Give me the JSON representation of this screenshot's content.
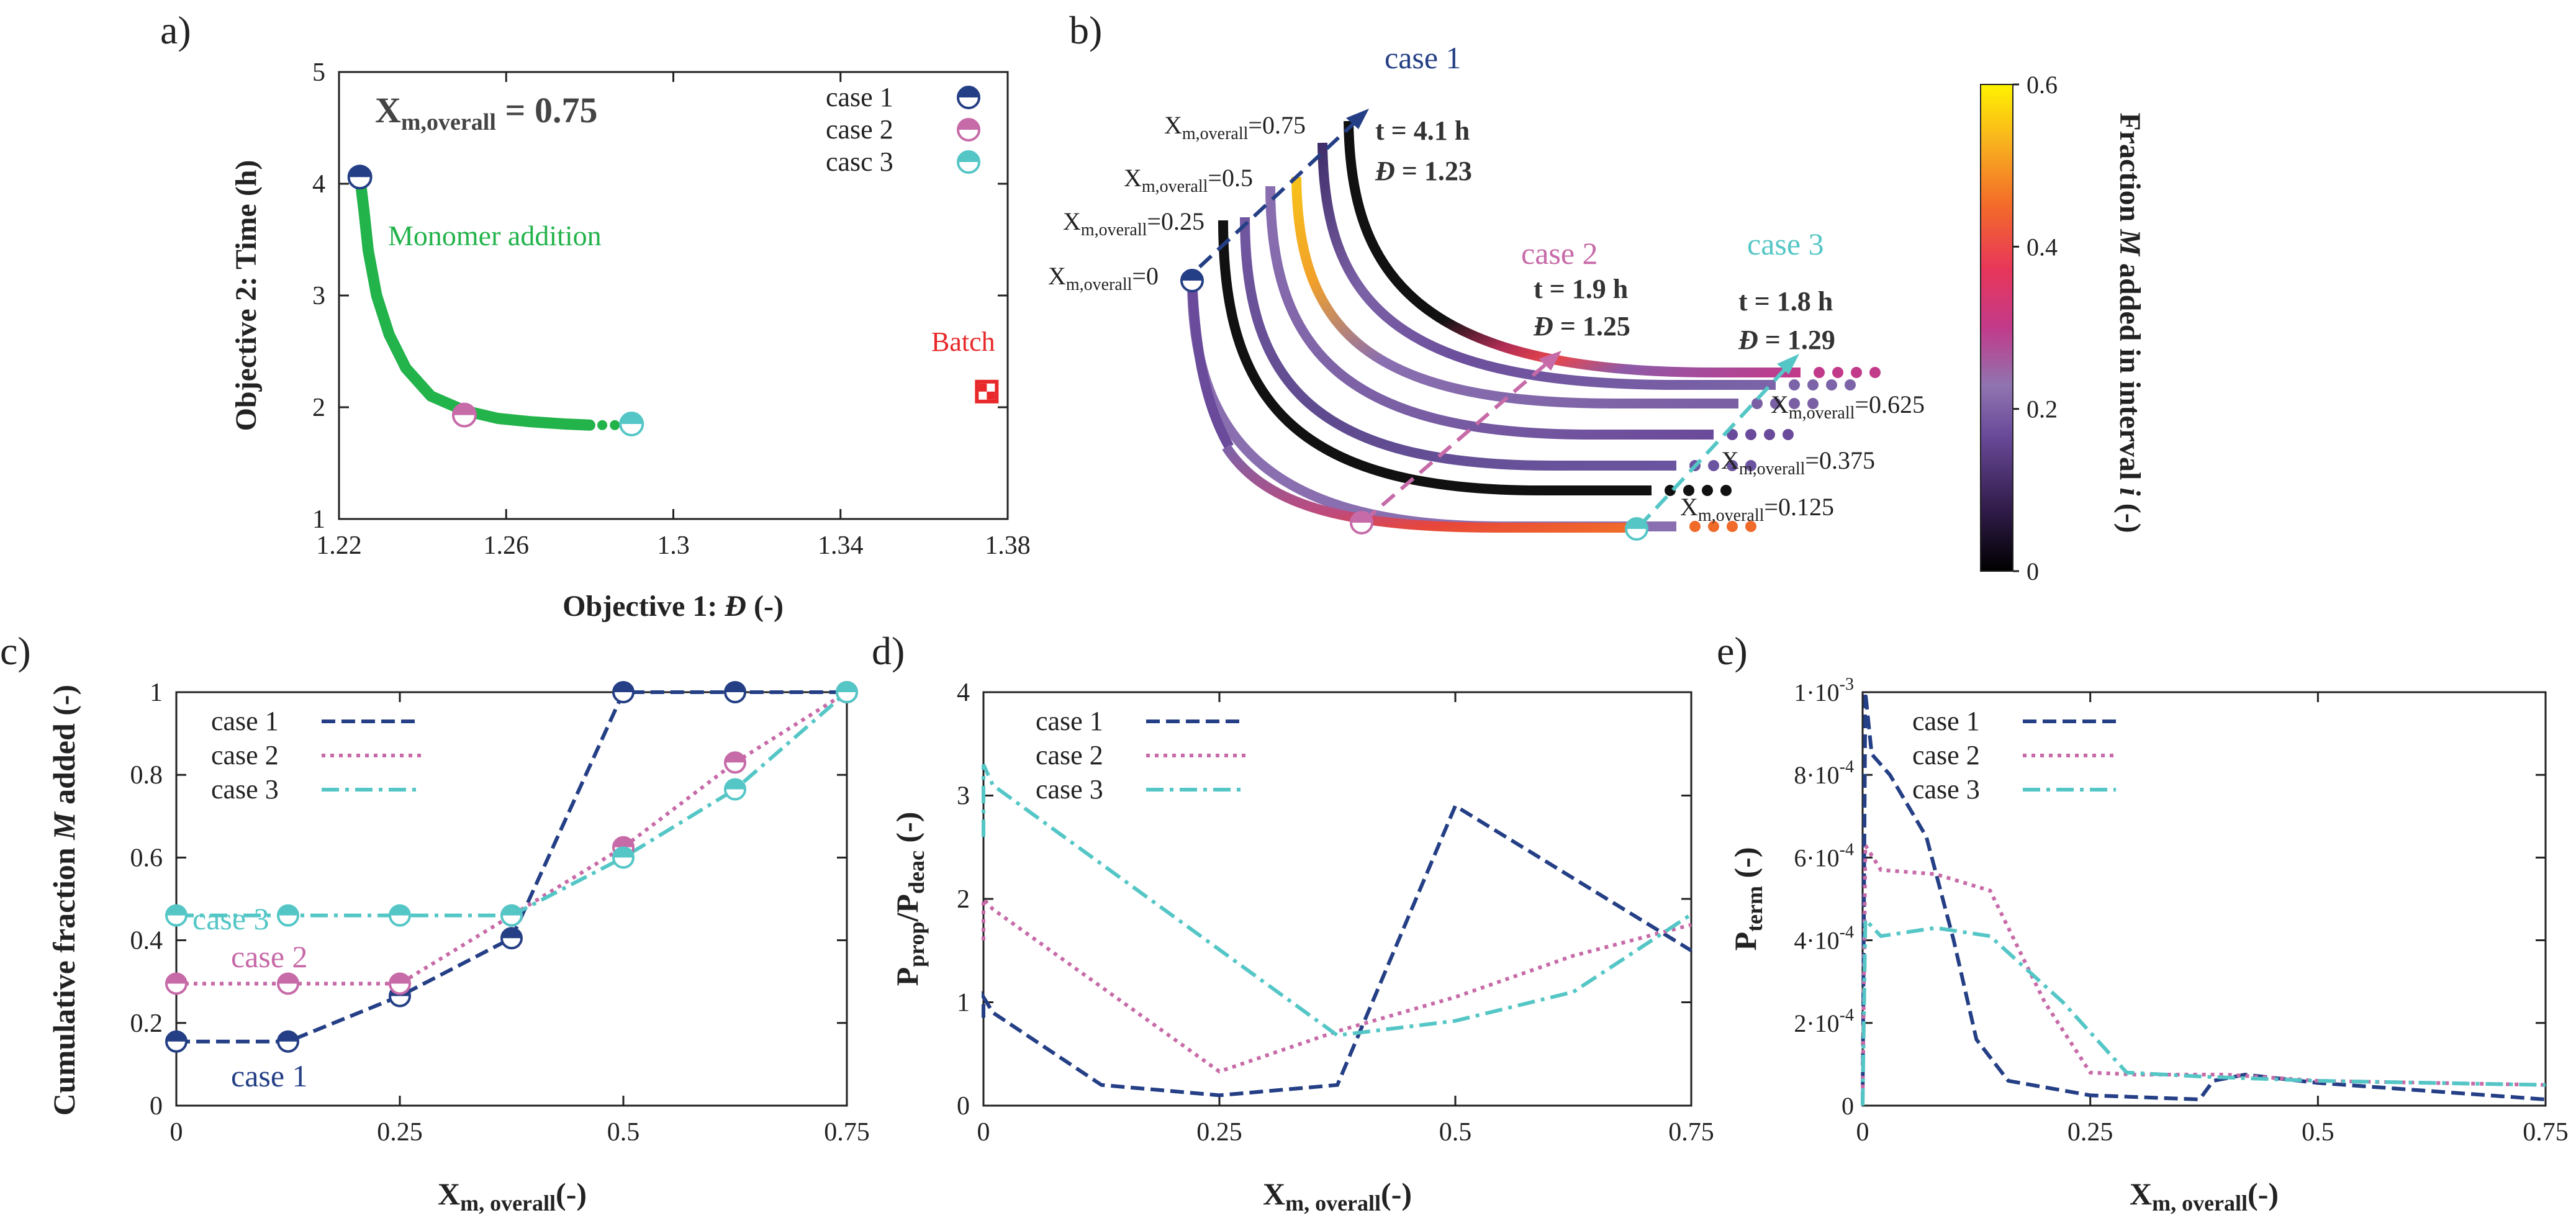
{
  "colors": {
    "case1": "#243f85",
    "case2": "#c76aa8",
    "case3": "#55c6c6",
    "green": "#22b34a",
    "batch": "#e8282a",
    "dark": "#333333"
  },
  "chart_data": [
    {
      "panel": "a)",
      "type": "scatter",
      "xlabel_main": "Objective 1: ",
      "xlabel_sym": "Đ",
      "xlabel_unit": " (-)",
      "ylabel": "Objective 2: Time (h)",
      "xlim": [
        1.22,
        1.38
      ],
      "ylim": [
        1,
        5
      ],
      "xticks": [
        1.22,
        1.26,
        1.3,
        1.34,
        1.38
      ],
      "xtick_labels": [
        "1.22",
        "1.26",
        "1.3",
        "1.34",
        "1.38"
      ],
      "yticks": [
        1,
        2,
        3,
        4,
        5
      ],
      "ytick_labels": [
        "1",
        "2",
        "3",
        "4",
        "5"
      ],
      "annotation_main": "X",
      "annotation_sub": "m,overall",
      "annotation_val": " = 0.75",
      "front_label": "Monomer addition",
      "batch_label": "Batch",
      "front": [
        [
          1.225,
          4.06
        ],
        [
          1.226,
          3.75
        ],
        [
          1.227,
          3.4
        ],
        [
          1.229,
          3.0
        ],
        [
          1.232,
          2.65
        ],
        [
          1.236,
          2.35
        ],
        [
          1.242,
          2.1
        ],
        [
          1.25,
          1.97
        ],
        [
          1.258,
          1.9
        ],
        [
          1.266,
          1.87
        ],
        [
          1.274,
          1.85
        ],
        [
          1.28,
          1.84
        ]
      ],
      "front_dots": [
        [
          1.283,
          1.84
        ],
        [
          1.286,
          1.84
        ]
      ],
      "batch": [
        1.375,
        2.14
      ],
      "cases": [
        {
          "name": "case 1",
          "x": 1.225,
          "y": 4.06
        },
        {
          "name": "case 2",
          "x": 1.25,
          "y": 1.93
        },
        {
          "name": "casc 3",
          "x": 1.29,
          "y": 1.85
        }
      ]
    },
    {
      "panel": "b)",
      "type": "line",
      "colorbar_label_a": "Fraction ",
      "colorbar_label_b": "M",
      "colorbar_label_c": " added in interval ",
      "colorbar_label_d": "i",
      "colorbar_label_e": " (-)",
      "colorbar_ticks": [
        "0",
        "0.2",
        "0.4",
        "0.6"
      ],
      "colorbar_range": [
        0,
        0.6
      ],
      "level_labels": [
        "0",
        "0.25",
        "0.5",
        "0.75",
        "0.125",
        "0.375",
        "0.625"
      ],
      "x_label_main": "X",
      "x_label_sub": "m,overall",
      "case1": {
        "name": "case 1",
        "t": "t = 4.1 h",
        "d": " = 1.23"
      },
      "case2": {
        "name": "case 2",
        "t": "t = 1.9 h",
        "d": " = 1.25"
      },
      "case3": {
        "name": "case 3",
        "t": "t = 1.8 h",
        "d": " = 1.29"
      },
      "dispersity_symbol": "Đ"
    },
    {
      "panel": "c)",
      "type": "line",
      "xlabel_main": "X",
      "xlabel_sub": "m, overall",
      "xlabel_unit": "(-)",
      "ylabel_a": "Cumulative fraction ",
      "ylabel_b": "M",
      "ylabel_c": " added (-)",
      "xlim": [
        0,
        0.75
      ],
      "ylim": [
        0,
        1
      ],
      "xticks": [
        0,
        0.25,
        0.5,
        0.75
      ],
      "xtick_labels": [
        "0",
        "0.25",
        "0.5",
        "0.75"
      ],
      "yticks": [
        0,
        0.2,
        0.4,
        0.6,
        0.8,
        1
      ],
      "ytick_labels": [
        "0",
        "0.2",
        "0.4",
        "0.6",
        "0.8",
        "1"
      ],
      "x": [
        0,
        0.125,
        0.25,
        0.375,
        0.5,
        0.625,
        0.75
      ],
      "series": [
        {
          "name": "case 1",
          "values": [
            0.155,
            0.155,
            0.265,
            0.405,
            1.0,
            1.0,
            1.0
          ]
        },
        {
          "name": "case 2",
          "values": [
            0.295,
            0.295,
            0.295,
            0.46,
            0.625,
            0.83,
            1.0
          ]
        },
        {
          "name": "case 3",
          "values": [
            0.46,
            0.46,
            0.46,
            0.46,
            0.6,
            0.765,
            1.0
          ]
        }
      ],
      "inline_labels": [
        "case 3",
        "case 2",
        "case 1"
      ]
    },
    {
      "panel": "d)",
      "type": "line",
      "xlabel_main": "X",
      "xlabel_sub": "m, overall",
      "xlabel_unit": "(-)",
      "ylabel_main": "P",
      "ylabel_sub1": "prop",
      "ylabel_slash": "/P",
      "ylabel_sub2": "deac",
      "ylabel_unit": " (-)",
      "xlim": [
        0,
        0.75
      ],
      "ylim": [
        0,
        4
      ],
      "xticks": [
        0,
        0.25,
        0.5,
        0.75
      ],
      "xtick_labels": [
        "0",
        "0.25",
        "0.5",
        "0.75"
      ],
      "yticks": [
        0,
        1,
        2,
        3,
        4
      ],
      "ytick_labels": [
        "0",
        "1",
        "2",
        "3",
        "4"
      ],
      "series": [
        {
          "name": "case 1",
          "points": [
            [
              0,
              0.85
            ],
            [
              0,
              1.05
            ],
            [
              0.01,
              0.9
            ],
            [
              0.125,
              0.2
            ],
            [
              0.25,
              0.1
            ],
            [
              0.375,
              0.2
            ],
            [
              0.5,
              2.9
            ],
            [
              0.75,
              1.5
            ]
          ]
        },
        {
          "name": "case 2",
          "points": [
            [
              0,
              1.6
            ],
            [
              0,
              2.0
            ],
            [
              0.01,
              1.9
            ],
            [
              0.25,
              0.33
            ],
            [
              0.375,
              0.72
            ],
            [
              0.5,
              1.05
            ],
            [
              0.625,
              1.45
            ],
            [
              0.75,
              1.75
            ]
          ]
        },
        {
          "name": "case 3",
          "points": [
            [
              0,
              2.6
            ],
            [
              0,
              3.3
            ],
            [
              0.01,
              3.1
            ],
            [
              0.375,
              0.68
            ],
            [
              0.5,
              0.82
            ],
            [
              0.625,
              1.1
            ],
            [
              0.75,
              1.85
            ]
          ]
        }
      ]
    },
    {
      "panel": "e)",
      "type": "line",
      "xlabel_main": "X",
      "xlabel_sub": "m, overall",
      "xlabel_unit": "(-)",
      "ylabel_main": "P",
      "ylabel_sub": "term",
      "ylabel_unit": " (-)",
      "xlim": [
        0,
        0.75
      ],
      "ylim": [
        0,
        0.001
      ],
      "xticks": [
        0,
        0.25,
        0.5,
        0.75
      ],
      "xtick_labels": [
        "0",
        "0.25",
        "0.5",
        "0.75"
      ],
      "yticks": [
        0,
        0.0002,
        0.0004,
        0.0006,
        0.0008,
        0.001
      ],
      "ytick_bases": [
        "0",
        "2·10",
        "4·10",
        "6·10",
        "8·10",
        "1·10"
      ],
      "ytick_exps": [
        "",
        "-4",
        "-4",
        "-4",
        "-4",
        "-3"
      ],
      "series": [
        {
          "name": "case 1",
          "points": [
            [
              0,
              0
            ],
            [
              0.003,
              0.001
            ],
            [
              0.01,
              0.00085
            ],
            [
              0.03,
              0.0008
            ],
            [
              0.07,
              0.00065
            ],
            [
              0.1,
              0.0004
            ],
            [
              0.125,
              0.00016
            ],
            [
              0.16,
              6e-05
            ],
            [
              0.25,
              2.5e-05
            ],
            [
              0.37,
              1.5e-05
            ],
            [
              0.385,
              6e-05
            ],
            [
              0.42,
              7.5e-05
            ],
            [
              0.5,
              5.5e-05
            ],
            [
              0.75,
              1.5e-05
            ]
          ]
        },
        {
          "name": "case 2",
          "points": [
            [
              0,
              0
            ],
            [
              0.003,
              0.00063
            ],
            [
              0.02,
              0.00057
            ],
            [
              0.08,
              0.00056
            ],
            [
              0.14,
              0.00052
            ],
            [
              0.2,
              0.00025
            ],
            [
              0.25,
              8e-05
            ],
            [
              0.3,
              7.5e-05
            ],
            [
              0.4,
              7.5e-05
            ],
            [
              0.5,
              6e-05
            ],
            [
              0.75,
              5e-05
            ]
          ]
        },
        {
          "name": "case 3",
          "points": [
            [
              0,
              0
            ],
            [
              0.003,
              0.00045
            ],
            [
              0.02,
              0.00041
            ],
            [
              0.08,
              0.00043
            ],
            [
              0.14,
              0.00041
            ],
            [
              0.22,
              0.00025
            ],
            [
              0.29,
              8e-05
            ],
            [
              0.375,
              7e-05
            ],
            [
              0.5,
              6e-05
            ],
            [
              0.75,
              5e-05
            ]
          ]
        }
      ]
    }
  ]
}
